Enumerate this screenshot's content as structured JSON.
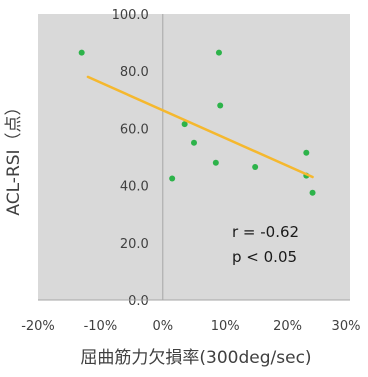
{
  "chart_data": {
    "type": "scatter",
    "xlabel": "屈曲筋力欠損率(300deg/sec)",
    "ylabel": "ACL-RSI（点）",
    "xlim": [
      -0.2,
      0.3
    ],
    "ylim": [
      0,
      100
    ],
    "x_ticks": [
      -0.2,
      -0.1,
      0,
      0.1,
      0.2,
      0.3
    ],
    "x_tick_labels": [
      "-20%",
      "-10%",
      "0%",
      "10%",
      "20%",
      "30%"
    ],
    "y_ticks": [
      0,
      20,
      40,
      60,
      80,
      100
    ],
    "y_tick_labels": [
      "0.0",
      "20.0",
      "40.0",
      "60.0",
      "80.0",
      "100.0"
    ],
    "grid": false,
    "plot_background": "#d9d9d9",
    "point_color": "#2db34a",
    "trendline_color": "#f5b82e",
    "series": [
      {
        "points": [
          {
            "x": -0.13,
            "y": 86.5
          },
          {
            "x": 0.015,
            "y": 42.5
          },
          {
            "x": 0.035,
            "y": 61.5
          },
          {
            "x": 0.05,
            "y": 55.0
          },
          {
            "x": 0.085,
            "y": 48.0
          },
          {
            "x": 0.09,
            "y": 86.5
          },
          {
            "x": 0.092,
            "y": 68.0
          },
          {
            "x": 0.148,
            "y": 46.5
          },
          {
            "x": 0.23,
            "y": 51.5
          },
          {
            "x": 0.23,
            "y": 43.5
          },
          {
            "x": 0.24,
            "y": 37.5
          }
        ]
      }
    ],
    "trendline": {
      "x": [
        -0.12,
        0.24
      ],
      "y": [
        78.0,
        43.0
      ]
    },
    "annotations": [
      "r = -0.62",
      "p < 0.05"
    ]
  }
}
